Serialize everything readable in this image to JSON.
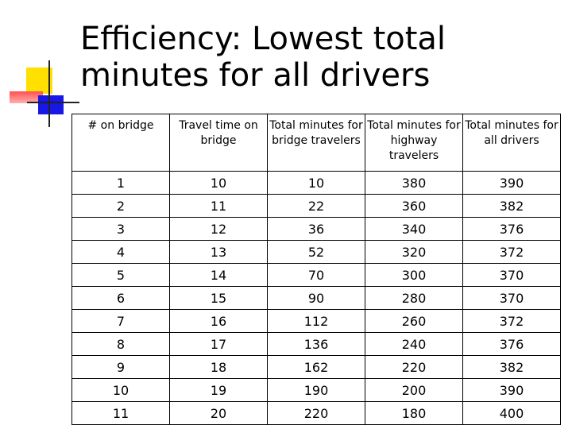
{
  "title_line1": "Efficiency:  Lowest total",
  "title_line2": "minutes for all drivers",
  "table": {
    "headers": [
      "# on bridge",
      "Travel time on bridge",
      "Total minutes for bridge travelers",
      "Total minutes for highway travelers",
      "Total minutes for all drivers"
    ],
    "rows": [
      [
        "1",
        "10",
        "10",
        "380",
        "390"
      ],
      [
        "2",
        "11",
        "22",
        "360",
        "382"
      ],
      [
        "3",
        "12",
        "36",
        "340",
        "376"
      ],
      [
        "4",
        "13",
        "52",
        "320",
        "372"
      ],
      [
        "5",
        "14",
        "70",
        "300",
        "370"
      ],
      [
        "6",
        "15",
        "90",
        "280",
        "370"
      ],
      [
        "7",
        "16",
        "112",
        "260",
        "372"
      ],
      [
        "8",
        "17",
        "136",
        "240",
        "376"
      ],
      [
        "9",
        "18",
        "162",
        "220",
        "382"
      ],
      [
        "10",
        "19",
        "190",
        "200",
        "390"
      ],
      [
        "11",
        "20",
        "220",
        "180",
        "400"
      ]
    ]
  },
  "colors": {
    "accent_yellow": "#ffe000",
    "accent_red": "#ff5050",
    "accent_blue": "#1717e6"
  }
}
